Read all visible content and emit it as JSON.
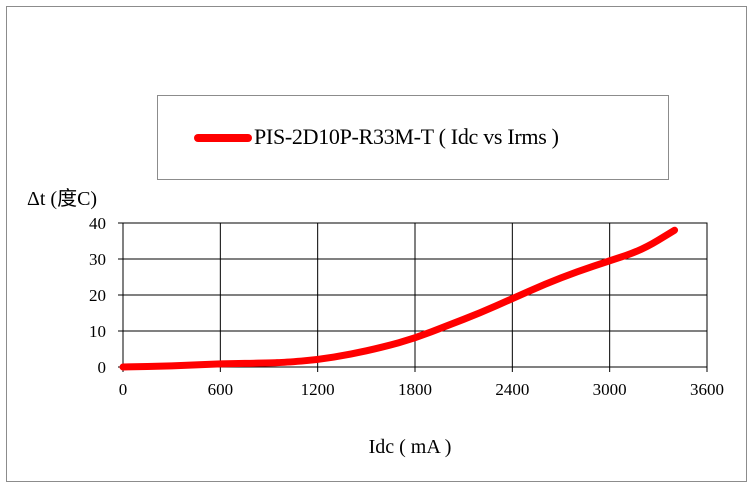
{
  "chart_data": {
    "type": "line",
    "title": "",
    "ylabel": "Δt (度C)",
    "xlabel": "Idc ( mA )",
    "xlim": [
      0,
      3600
    ],
    "ylim": [
      0,
      40
    ],
    "x_ticks": [
      "0",
      "600",
      "1200",
      "1800",
      "2400",
      "3000",
      "3600"
    ],
    "y_ticks": [
      "0",
      "10",
      "20",
      "30",
      "40"
    ],
    "grid": true,
    "legend_position": "top",
    "series": [
      {
        "name": "PIS-2D10P-R33M-T ( Idc vs  Irms )",
        "color": "#ff0000",
        "points": [
          [
            0,
            0
          ],
          [
            300,
            0.3
          ],
          [
            600,
            0.9
          ],
          [
            900,
            1.1
          ],
          [
            1000,
            1.3
          ],
          [
            1200,
            2
          ],
          [
            1400,
            3.5
          ],
          [
            1600,
            5.5
          ],
          [
            1800,
            8
          ],
          [
            2000,
            11.5
          ],
          [
            2200,
            15
          ],
          [
            2400,
            19
          ],
          [
            2600,
            23
          ],
          [
            2800,
            26.5
          ],
          [
            3000,
            29.5
          ],
          [
            3200,
            32.5
          ],
          [
            3400,
            38
          ]
        ]
      }
    ]
  }
}
